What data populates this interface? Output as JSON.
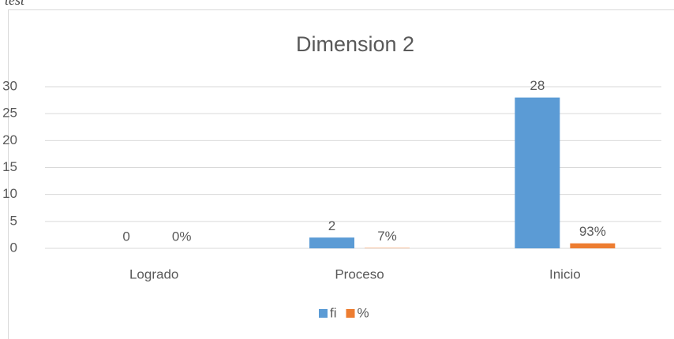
{
  "caption": "test",
  "chart_data": {
    "type": "bar",
    "title": "Dimension 2",
    "categories": [
      "Logrado",
      "Proceso",
      "Inicio"
    ],
    "series": [
      {
        "name": "fi",
        "color": "#5b9bd5",
        "values": [
          0,
          2,
          28
        ]
      },
      {
        "name": "%",
        "color": "#ed7d31",
        "values": [
          0,
          0.07,
          0.93
        ],
        "value_labels": [
          "0%",
          "7%",
          "93%"
        ]
      }
    ],
    "ylim": [
      0,
      30
    ],
    "yticks": [
      0,
      5,
      10,
      15,
      20,
      25,
      30
    ],
    "grid": true,
    "legend": "bottom"
  }
}
